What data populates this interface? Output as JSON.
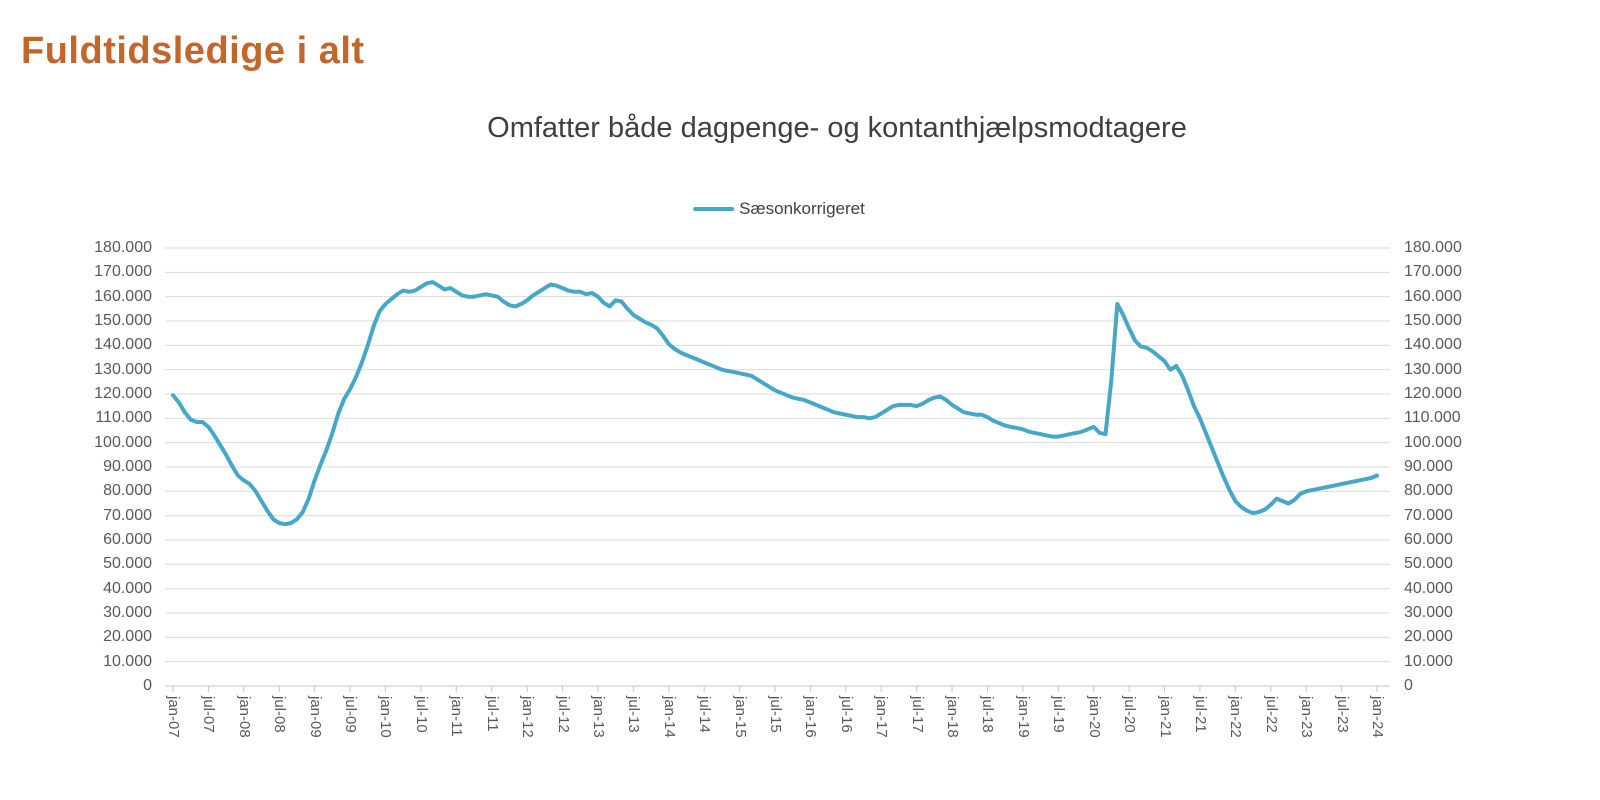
{
  "page": {
    "heading": "Fuldtidsledige i alt"
  },
  "chart_data": {
    "type": "line",
    "title": "Omfatter både dagpenge- og kontanthjælpsmodtagere",
    "legend": {
      "label": "Sæsonkorrigeret",
      "position": "top-center"
    },
    "line_color": "#46A8C6",
    "gridline_color": "#DBDBDB",
    "axis_color": "#C6C6C6",
    "label_color": "#595959",
    "grid": "horizontal-only",
    "y_axis": {
      "min": 0,
      "max": 180000,
      "step": 10000,
      "sides": "both",
      "tick_labels_bottom_to_top": [
        "0",
        "10.000",
        "20.000",
        "30.000",
        "40.000",
        "50.000",
        "60.000",
        "70.000",
        "80.000",
        "90.000",
        "100.000",
        "110.000",
        "120.000",
        "130.000",
        "140.000",
        "150.000",
        "160.000",
        "170.000",
        "180.000"
      ]
    },
    "x_axis": {
      "tick_interval_months": 6,
      "tick_labels": [
        "jan-07",
        "jul-07",
        "jan-08",
        "jul-08",
        "jan-09",
        "jul-09",
        "jan-10",
        "jul-10",
        "jan-11",
        "jul-11",
        "jan-12",
        "jul-12",
        "jan-13",
        "jul-13",
        "jan-14",
        "jul-14",
        "jan-15",
        "jul-15",
        "jan-16",
        "jul-16",
        "jan-17",
        "jul-17",
        "jan-18",
        "jul-18",
        "jan-19",
        "jul-19",
        "jan-20",
        "jul-20",
        "jan-21",
        "jul-21",
        "jan-22",
        "jul-22",
        "jan-23",
        "jul-23",
        "jan-24"
      ]
    },
    "series": [
      {
        "name": "Sæsonkorrigeret",
        "start": "jan-07",
        "frequency": "monthly",
        "values": [
          119500,
          116500,
          112500,
          109500,
          108500,
          108500,
          106500,
          103000,
          99000,
          95000,
          90500,
          86500,
          84500,
          83000,
          80000,
          76000,
          72000,
          68500,
          67000,
          66500,
          67000,
          68500,
          71500,
          77000,
          84500,
          91000,
          97000,
          104000,
          112000,
          118000,
          122000,
          127000,
          133000,
          140000,
          148000,
          154000,
          157000,
          159000,
          161000,
          162500,
          162000,
          162500,
          164000,
          165500,
          166000,
          164500,
          163000,
          163500,
          162000,
          160500,
          160000,
          160000,
          160500,
          161000,
          160500,
          160000,
          158000,
          156500,
          156000,
          157000,
          158500,
          160500,
          162000,
          163500,
          165000,
          164500,
          163500,
          162500,
          162000,
          162000,
          161000,
          161500,
          160000,
          157500,
          156000,
          158500,
          158000,
          155000,
          152500,
          151000,
          149500,
          148500,
          147000,
          144000,
          140500,
          138500,
          137000,
          136000,
          135000,
          134000,
          133000,
          132000,
          131000,
          130000,
          129500,
          129000,
          128500,
          128000,
          127500,
          126000,
          124500,
          123000,
          121500,
          120500,
          119500,
          118500,
          118000,
          117500,
          116500,
          115500,
          114500,
          113500,
          112500,
          112000,
          111500,
          111000,
          110500,
          110500,
          110000,
          110500,
          112000,
          113500,
          115000,
          115500,
          115500,
          115500,
          115000,
          116000,
          117500,
          118500,
          119000,
          117500,
          115500,
          114000,
          112500,
          112000,
          111500,
          111500,
          110500,
          109000,
          108000,
          107000,
          106500,
          106000,
          105500,
          104500,
          104000,
          103500,
          103000,
          102500,
          102500,
          103000,
          103500,
          104000,
          104500,
          105500,
          106500,
          104000,
          103500,
          126000,
          157000,
          152500,
          147000,
          142000,
          139500,
          139000,
          137500,
          135500,
          133500,
          130000,
          131500,
          127500,
          121500,
          115000,
          110000,
          104000,
          98000,
          92000,
          86000,
          80500,
          76000,
          73500,
          72000,
          71000,
          71500,
          72500,
          74500,
          77000,
          76000,
          75000,
          76500,
          79000,
          80000,
          80500,
          81000,
          81500,
          82000,
          82500,
          83000,
          83500,
          84000,
          84500,
          85000,
          85500,
          86500
        ]
      }
    ]
  }
}
